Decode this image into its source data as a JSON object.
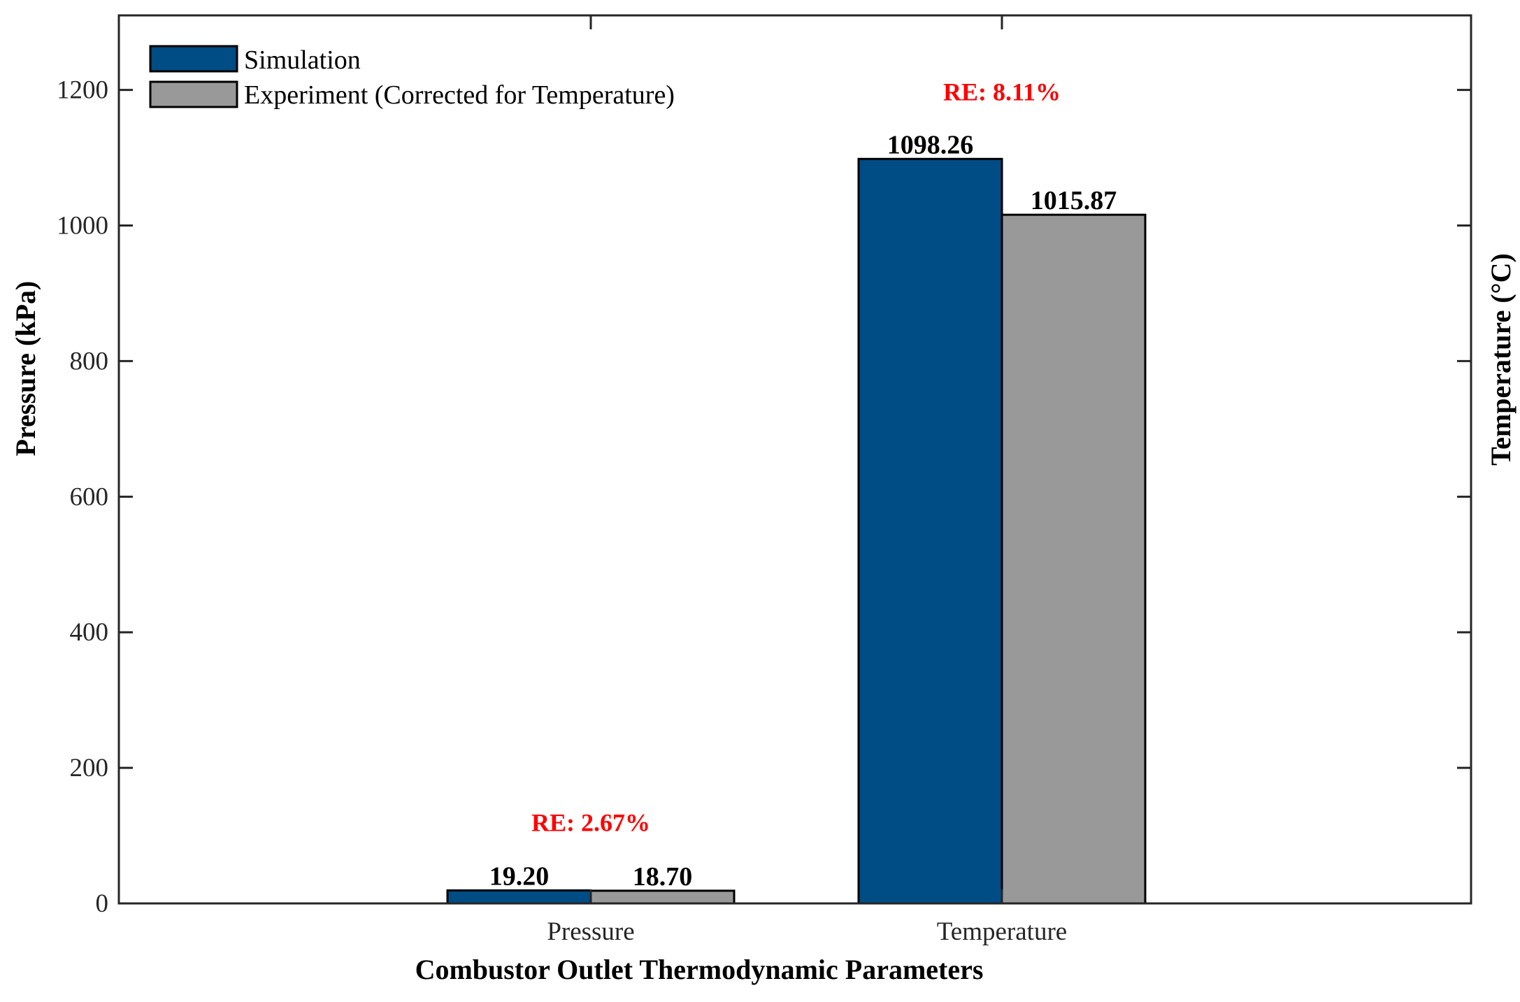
{
  "chart_data": {
    "type": "bar",
    "categories": [
      "Pressure",
      "Temperature"
    ],
    "series": [
      {
        "name": "Simulation",
        "values": [
          19.2,
          1098.26
        ],
        "labels": [
          "19.20",
          "1098.26"
        ],
        "color": "#004c85"
      },
      {
        "name": "Experiment (Corrected for Temperature)",
        "values": [
          18.7,
          1015.87
        ],
        "labels": [
          "18.70",
          "1015.87"
        ],
        "color": "#999999"
      }
    ],
    "xlabel": "Combustor Outlet Thermodynamic Parameters",
    "ylabel": "Pressure (kPa)",
    "ylabel_right": "Temperature (°C)",
    "ylim": [
      0,
      1310
    ],
    "yticks": [
      0,
      200,
      400,
      600,
      800,
      1000,
      1200
    ],
    "legend_position": "top-left",
    "grid": false,
    "annotations": [
      {
        "category": "Pressure",
        "value": 120,
        "text": "RE: 2.67%",
        "color": "#ff0000"
      },
      {
        "category": "Temperature",
        "value": 1198,
        "text": "RE: 8.11%",
        "color": "#ff0000"
      }
    ]
  }
}
